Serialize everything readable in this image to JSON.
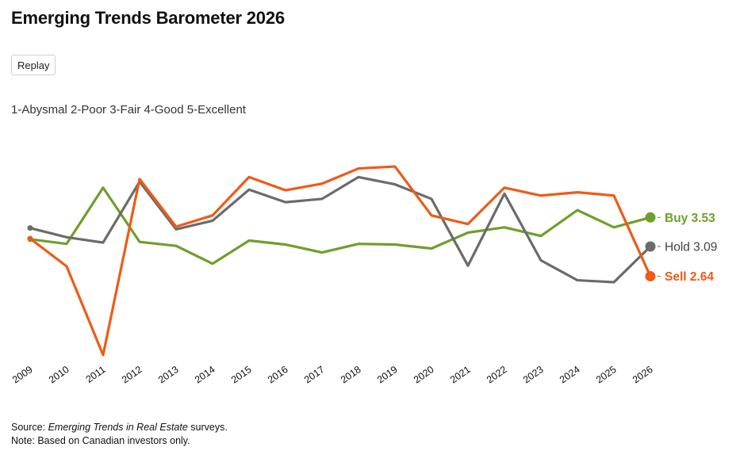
{
  "header": {
    "title": "Emerging Trends Barometer 2026",
    "replay_label": "Replay"
  },
  "scale_note": "1-Abysmal 2-Poor 3-Fair 4-Good 5-Excellent",
  "footer": {
    "source_prefix": "Source: ",
    "source_italic": "Emerging Trends in Real Estate",
    "source_suffix": " surveys.",
    "note": "Note: Based on Canadian investors only."
  },
  "colors": {
    "buy": "#6e9f2c",
    "hold": "#6b6b6b",
    "sell": "#f05a16"
  },
  "chart_data": {
    "type": "line",
    "title": "Emerging Trends Barometer 2026",
    "xlabel": "",
    "ylabel": "",
    "ylim": [
      1.4,
      4.9
    ],
    "grid": false,
    "categories": [
      "2009",
      "2010",
      "2011",
      "2012",
      "2013",
      "2014",
      "2015",
      "2016",
      "2017",
      "2018",
      "2019",
      "2020",
      "2021",
      "2022",
      "2023",
      "2024",
      "2025",
      "2026"
    ],
    "series": [
      {
        "name": "Buy",
        "end_label": "Buy 3.53",
        "color": "#6e9f2c",
        "values": [
          3.2,
          3.13,
          3.98,
          3.16,
          3.1,
          2.83,
          3.18,
          3.12,
          3.0,
          3.13,
          3.12,
          3.06,
          3.3,
          3.38,
          3.25,
          3.64,
          3.38,
          3.53
        ]
      },
      {
        "name": "Hold",
        "end_label": "Hold 3.09",
        "color": "#6b6b6b",
        "values": [
          3.37,
          3.23,
          3.15,
          4.07,
          3.35,
          3.48,
          3.95,
          3.76,
          3.81,
          4.14,
          4.03,
          3.81,
          2.8,
          3.89,
          2.88,
          2.58,
          2.55,
          3.09
        ]
      },
      {
        "name": "Sell",
        "end_label": "Sell 2.64",
        "color": "#f05a16",
        "values": [
          3.21,
          2.79,
          1.45,
          4.11,
          3.39,
          3.56,
          4.14,
          3.94,
          4.04,
          4.27,
          4.3,
          3.56,
          3.43,
          3.98,
          3.86,
          3.91,
          3.86,
          2.64
        ]
      }
    ]
  }
}
